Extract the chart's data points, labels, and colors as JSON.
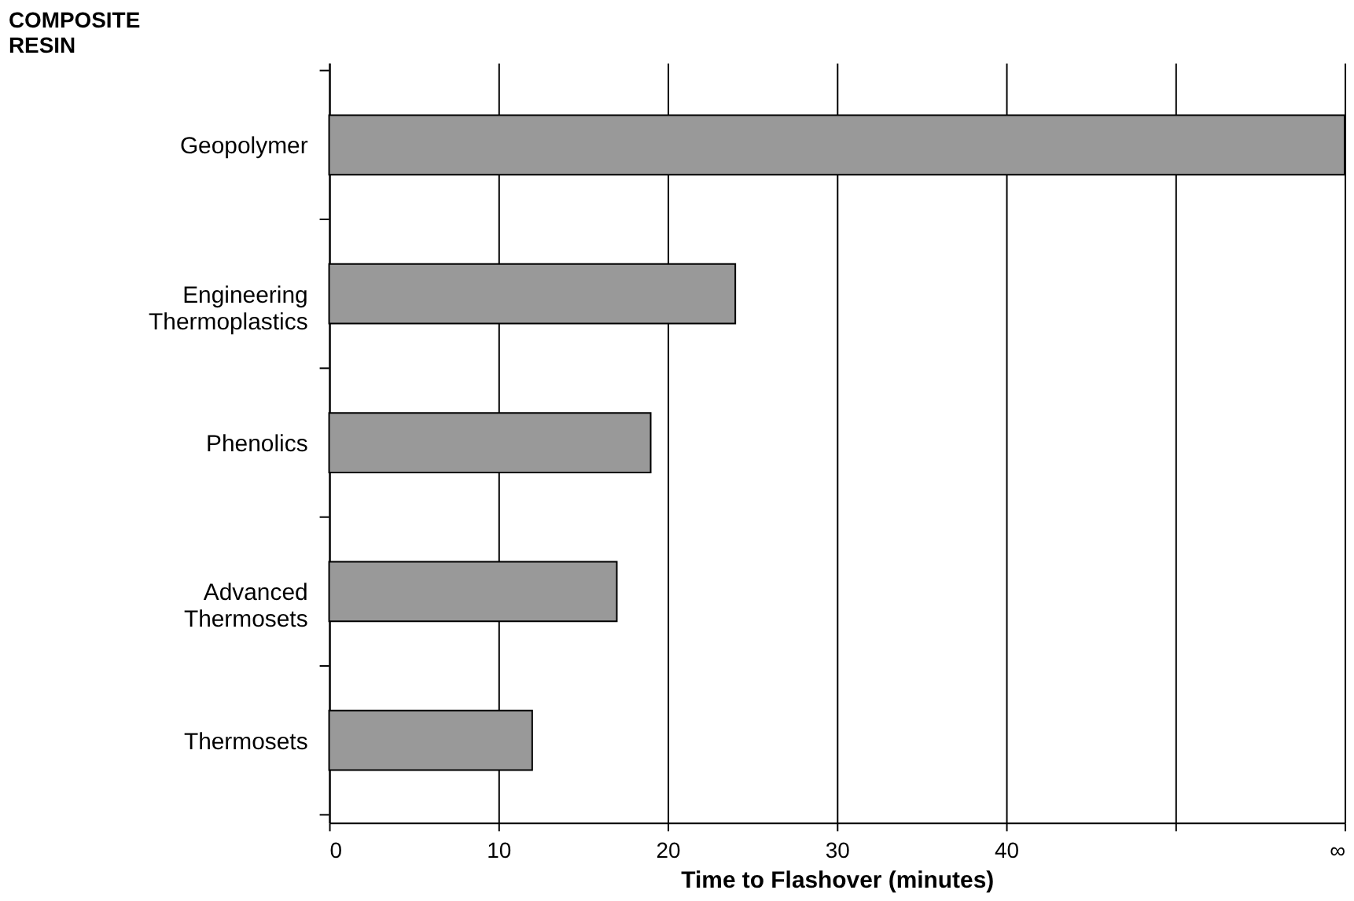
{
  "chart_data": {
    "type": "bar",
    "orientation": "horizontal",
    "ylabel": "COMPOSITE RESIN",
    "xlabel": "Time to Flashover (minutes)",
    "categories": [
      "Geopolymer",
      "Engineering Thermoplastics",
      "Phenolics",
      "Advanced Thermosets",
      "Thermosets"
    ],
    "values": [
      60,
      24,
      19,
      17,
      12
    ],
    "color": "#999999",
    "xlim": [
      0,
      60
    ],
    "xticks": [
      0,
      10,
      20,
      30,
      40,
      {
        "value": 50,
        "label": null
      },
      {
        "value": 60,
        "label": "∞"
      }
    ],
    "grid": "x"
  }
}
